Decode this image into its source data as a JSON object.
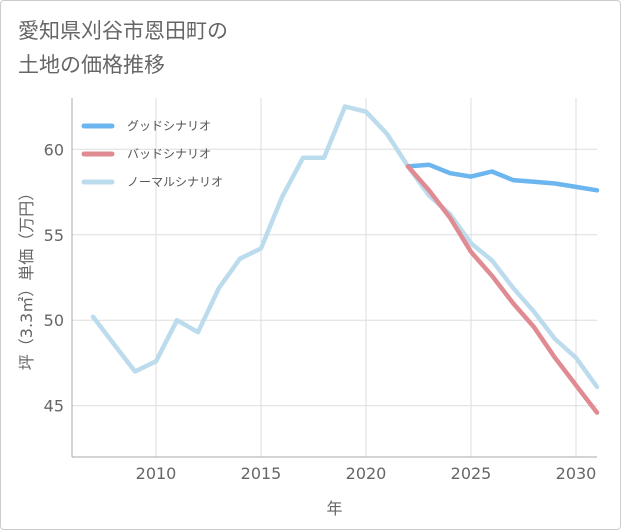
{
  "title": {
    "line1": "愛知県刈谷市恩田町の",
    "line2": "土地の価格推移"
  },
  "colors": {
    "good": "#6cb6ef",
    "bad": "#e08a92",
    "normal": "#bcdcee",
    "grid": "#dddddd",
    "axis": "#aaaaaa"
  },
  "chart_data": {
    "type": "line",
    "title": "愛知県刈谷市恩田町の土地の価格推移",
    "xlabel": "年",
    "ylabel": "坪（3.3㎡）単価（万円）",
    "xlim": [
      2006,
      2031
    ],
    "ylim": [
      42,
      63
    ],
    "xticks": [
      2010,
      2015,
      2020,
      2025,
      2030
    ],
    "yticks": [
      45,
      50,
      55,
      60
    ],
    "grid": true,
    "legend_position": "top-left",
    "series": [
      {
        "name": "グッドシナリオ",
        "color_key": "good",
        "x": [
          2022,
          2023,
          2024,
          2025,
          2026,
          2027,
          2028,
          2029,
          2030,
          2031
        ],
        "y": [
          59.0,
          59.1,
          58.6,
          58.4,
          58.7,
          58.2,
          58.1,
          58.0,
          57.8,
          57.6
        ]
      },
      {
        "name": "バッドシナリオ",
        "color_key": "bad",
        "x": [
          2022,
          2023,
          2024,
          2025,
          2026,
          2027,
          2028,
          2029,
          2030,
          2031
        ],
        "y": [
          59.0,
          57.6,
          56.0,
          54.0,
          52.6,
          51.0,
          49.6,
          47.8,
          46.2,
          44.6
        ]
      },
      {
        "name": "ノーマルシナリオ",
        "color_key": "normal",
        "x": [
          2007,
          2008,
          2009,
          2010,
          2011,
          2012,
          2013,
          2014,
          2015,
          2016,
          2017,
          2018,
          2019,
          2020,
          2021,
          2022,
          2023,
          2024,
          2025,
          2026,
          2027,
          2028,
          2029,
          2030,
          2031
        ],
        "y": [
          50.2,
          48.6,
          47.0,
          47.6,
          50.0,
          49.3,
          51.9,
          53.6,
          54.2,
          57.2,
          59.5,
          59.5,
          62.5,
          62.2,
          60.9,
          59.0,
          57.3,
          56.2,
          54.5,
          53.5,
          51.9,
          50.5,
          48.9,
          47.8,
          46.1
        ]
      }
    ]
  }
}
